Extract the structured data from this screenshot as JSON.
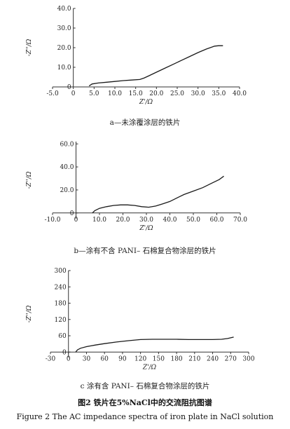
{
  "chart_data": [
    {
      "type": "line",
      "xlabel": "Z'/Ω",
      "ylabel": "-Z''/Ω",
      "xlim": [
        -5.0,
        40.0
      ],
      "ylim": [
        0,
        40.0
      ],
      "xticks": [
        "-5.0",
        "0",
        "5.0",
        "10.0",
        "15.0",
        "20.0",
        "25.0",
        "30.0",
        "35.0",
        "40.0"
      ],
      "yticks": [
        "0",
        "10.0",
        "20.0",
        "30.0",
        "40.0"
      ],
      "xtick_values": [
        -5,
        0,
        5,
        10,
        15,
        20,
        25,
        30,
        35,
        40
      ],
      "ytick_values": [
        0,
        10,
        20,
        30,
        40
      ],
      "series": [
        {
          "x": [
            3.8,
            4.5,
            6,
            8,
            10,
            12,
            14,
            16,
            17,
            18,
            20,
            22,
            24,
            26,
            28,
            30,
            32,
            34,
            35,
            36
          ],
          "y": [
            0.5,
            1.5,
            2.0,
            2.4,
            2.8,
            3.2,
            3.5,
            3.8,
            4.5,
            5.5,
            7.5,
            9.5,
            11.5,
            13.5,
            15.5,
            17.5,
            19.3,
            20.8,
            21.0,
            21.0
          ]
        }
      ],
      "caption": "a—未涂覆涂层的铁片"
    },
    {
      "type": "line",
      "xlabel": "Z'/Ω",
      "ylabel": "-Z''/Ω",
      "xlim": [
        -10.0,
        70.0
      ],
      "ylim": [
        -5,
        62
      ],
      "xticks": [
        "-10.0",
        "0",
        "10.0",
        "20.0",
        "30.0",
        "40.0",
        "50.0",
        "60.0",
        "70.0"
      ],
      "yticks": [
        "0",
        "20.0",
        "40.0",
        "60.0"
      ],
      "xtick_values": [
        -10,
        0,
        10,
        20,
        30,
        40,
        50,
        60,
        70
      ],
      "ytick_values": [
        0,
        20,
        40,
        60
      ],
      "series": [
        {
          "x": [
            7,
            8,
            10,
            13,
            16,
            19,
            22,
            25,
            28,
            31,
            34,
            37,
            40,
            43,
            46,
            50,
            54,
            58,
            61,
            63
          ],
          "y": [
            0,
            2,
            4,
            5.5,
            6.5,
            7,
            7,
            6.5,
            5.5,
            5,
            6,
            8,
            10,
            13,
            16,
            19,
            22,
            26,
            29,
            32
          ]
        }
      ],
      "caption": "b—涂有不含 PANI– 石棉复合物涂层的铁片"
    },
    {
      "type": "line",
      "xlabel": "Z'/Ω",
      "ylabel": "-Z''/Ω",
      "xlim": [
        -30,
        300
      ],
      "ylim": [
        -20,
        300
      ],
      "xticks": [
        "-30",
        "0",
        "30",
        "60",
        "90",
        "120",
        "150",
        "180",
        "210",
        "240",
        "270",
        "300"
      ],
      "yticks": [
        "0",
        "60",
        "120",
        "180",
        "240",
        "300"
      ],
      "xtick_values": [
        -30,
        0,
        30,
        60,
        90,
        120,
        150,
        180,
        210,
        240,
        270,
        300
      ],
      "ytick_values": [
        0,
        60,
        120,
        180,
        240,
        300
      ],
      "series": [
        {
          "x": [
            12,
            15,
            20,
            30,
            45,
            60,
            80,
            100,
            120,
            140,
            160,
            180,
            200,
            220,
            240,
            255,
            265,
            275
          ],
          "y": [
            0,
            8,
            14,
            20,
            26,
            31,
            37,
            42,
            46,
            47,
            47,
            47,
            46,
            46,
            46,
            47,
            50,
            55
          ]
        }
      ],
      "caption": "c  涂有含 PANI– 石棉复合物涂层的铁片"
    }
  ],
  "figure": {
    "title_cn": "图2  铁片在5%NaCl中的交流阻抗图谱",
    "title_en": "Figure 2   The AC impedance spectra of iron plate in NaCl solution"
  }
}
